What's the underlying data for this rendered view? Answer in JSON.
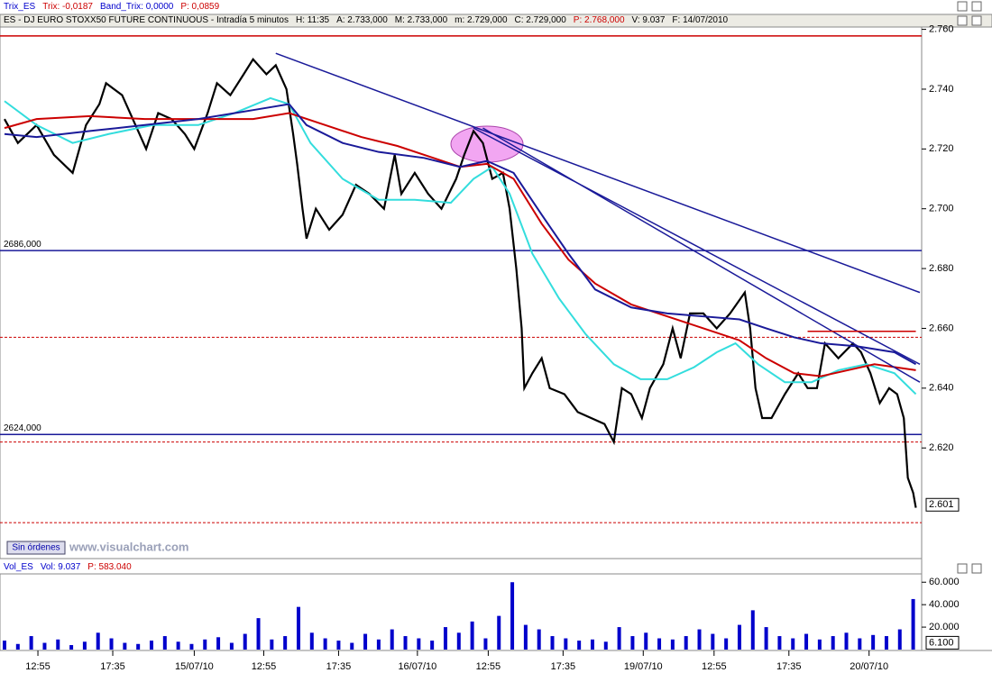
{
  "header": {
    "top": [
      "Trix_ES",
      "Trix: -0,0187",
      "Band_Trix: 0,0000",
      "P: 0,0859"
    ],
    "title": [
      "ES - DJ EURO STOXX50 FUTURE CONTINUOUS - Intradía 5 minutos",
      "H: 11:35",
      "A: 2.733,000",
      "M: 2.733,000",
      "m: 2.729,000",
      "C: 2.729,000",
      "P: 2.768,000",
      "V: 9.037",
      "F: 14/07/2010"
    ],
    "volume": [
      "Vol_ES",
      "Vol: 9.037",
      "P: 583.040"
    ],
    "button": "Sin órdenes",
    "watermark": "www.visualchart.com"
  },
  "chart_data": [
    {
      "type": "line",
      "xlim": [
        0,
        685
      ],
      "ylim": [
        2.583,
        2.765
      ],
      "yticks": [
        {
          "value": 2.62,
          "label": "2.620"
        },
        {
          "value": 2.64,
          "label": "2.640"
        },
        {
          "value": 2.66,
          "label": "2.660"
        },
        {
          "value": 2.68,
          "label": "2.680"
        },
        {
          "value": 2.7,
          "label": "2.700"
        },
        {
          "value": 2.72,
          "label": "2.720"
        },
        {
          "value": 2.74,
          "label": "2.740"
        },
        {
          "value": 2.76,
          "label": "2.760"
        }
      ],
      "series": [
        {
          "color": "#000000",
          "x": [
            0,
            10,
            24,
            37,
            51,
            61,
            71,
            76,
            88,
            98,
            106,
            115,
            125,
            135,
            142,
            152,
            159,
            169,
            179,
            186,
            196,
            203,
            211,
            216,
            219,
            223,
            226,
            233,
            243,
            253,
            263,
            273,
            284,
            292,
            297,
            307,
            317,
            327,
            338,
            344,
            351,
            358,
            365,
            373,
            378,
            383,
            387,
            389,
            395,
            402,
            408,
            419,
            429,
            439,
            449,
            456,
            462,
            469,
            477,
            483,
            493,
            500,
            506,
            513,
            523,
            533,
            543,
            554,
            558,
            562,
            567,
            574,
            584,
            594,
            601,
            608,
            614,
            624,
            635,
            641,
            648,
            655,
            662,
            668,
            673,
            676,
            680,
            682
          ],
          "values": [
            2.73,
            2.722,
            2.728,
            2.718,
            2.712,
            2.728,
            2.735,
            2.742,
            2.738,
            2.728,
            2.72,
            2.732,
            2.73,
            2.725,
            2.72,
            2.732,
            2.742,
            2.738,
            2.745,
            2.75,
            2.745,
            2.748,
            2.74,
            2.725,
            2.715,
            2.7,
            2.69,
            2.7,
            2.693,
            2.698,
            2.708,
            2.705,
            2.7,
            2.718,
            2.705,
            2.712,
            2.705,
            2.7,
            2.71,
            2.718,
            2.726,
            2.722,
            2.71,
            2.712,
            2.7,
            2.68,
            2.66,
            2.64,
            2.645,
            2.65,
            2.64,
            2.638,
            2.632,
            2.63,
            2.628,
            2.622,
            2.64,
            2.638,
            2.63,
            2.64,
            2.648,
            2.66,
            2.65,
            2.665,
            2.665,
            2.66,
            2.665,
            2.672,
            2.66,
            2.64,
            2.63,
            2.63,
            2.638,
            2.645,
            2.64,
            2.64,
            2.655,
            2.65,
            2.655,
            2.652,
            2.645,
            2.635,
            2.64,
            2.638,
            2.63,
            2.61,
            2.605,
            2.6
          ]
        },
        {
          "color": "#33dddd",
          "x": [
            0,
            24,
            51,
            78,
            111,
            145,
            172,
            199,
            213,
            229,
            253,
            280,
            307,
            334,
            351,
            365,
            378,
            395,
            415,
            435,
            456,
            476,
            496,
            516,
            533,
            547,
            564,
            584,
            604,
            624,
            645,
            666,
            682
          ],
          "values": [
            2.736,
            2.728,
            2.722,
            2.725,
            2.728,
            2.728,
            2.732,
            2.737,
            2.735,
            2.722,
            2.71,
            2.703,
            2.703,
            2.702,
            2.71,
            2.714,
            2.705,
            2.685,
            2.67,
            2.658,
            2.648,
            2.643,
            2.643,
            2.647,
            2.652,
            2.655,
            2.648,
            2.642,
            2.642,
            2.646,
            2.648,
            2.645,
            2.638
          ]
        },
        {
          "color": "#cc0000",
          "x": [
            0,
            24,
            64,
            105,
            145,
            186,
            213,
            240,
            267,
            294,
            321,
            341,
            361,
            381,
            402,
            422,
            442,
            469,
            496,
            523,
            550,
            570,
            591,
            611,
            631,
            651,
            682
          ],
          "values": [
            2.727,
            2.73,
            2.731,
            2.73,
            2.73,
            2.73,
            2.732,
            2.728,
            2.724,
            2.721,
            2.717,
            2.714,
            2.715,
            2.71,
            2.695,
            2.683,
            2.675,
            2.668,
            2.664,
            2.66,
            2.656,
            2.65,
            2.645,
            2.644,
            2.646,
            2.648,
            2.646
          ]
        },
        {
          "color": "#1a1a99",
          "x": [
            0,
            24,
            64,
            105,
            145,
            186,
            213,
            226,
            253,
            280,
            314,
            341,
            361,
            381,
            402,
            422,
            442,
            469,
            496,
            523,
            550,
            570,
            591,
            611,
            638,
            666,
            682
          ],
          "values": [
            2.725,
            2.724,
            2.726,
            2.728,
            2.73,
            2.733,
            2.735,
            2.728,
            2.722,
            2.719,
            2.717,
            2.714,
            2.716,
            2.712,
            2.698,
            2.685,
            2.673,
            2.667,
            2.665,
            2.664,
            2.663,
            2.66,
            2.657,
            2.655,
            2.654,
            2.652,
            2.648
          ]
        }
      ],
      "trendlines": [
        {
          "color": "#1a1a99",
          "x": [
            203,
            685
          ],
          "values": [
            2.752,
            2.672
          ]
        },
        {
          "color": "#1a1a99",
          "x": [
            351,
            685
          ],
          "values": [
            2.727,
            2.648
          ]
        },
        {
          "color": "#1a1a99",
          "x": [
            358,
            685
          ],
          "values": [
            2.727,
            2.642
          ]
        },
        {
          "color": "#cc0000",
          "x": [
            601,
            682
          ],
          "values": [
            2.659,
            2.659
          ]
        }
      ],
      "hlines": [
        {
          "value": 2.7578,
          "color": "#cc0000",
          "style": "solid"
        },
        {
          "value": 2.686,
          "color": "#1a1a99",
          "style": "solid",
          "label": "2686,000"
        },
        {
          "value": 2.657,
          "color": "#cc0000",
          "style": "dashed"
        },
        {
          "value": 2.6245,
          "color": "#1a1a99",
          "style": "solid",
          "label": "2624,000"
        },
        {
          "value": 2.622,
          "color": "#cc0000",
          "style": "dashed"
        },
        {
          "value": 2.595,
          "color": "#cc0000",
          "style": "dashed"
        }
      ],
      "last": {
        "value": 2.601,
        "label": "2.601"
      }
    },
    {
      "type": "bar",
      "xlim": [
        0,
        685
      ],
      "ylim": [
        0,
        65000
      ],
      "color": "#0000cc",
      "yticks": [
        {
          "value": 20000,
          "label": "20.000"
        },
        {
          "value": 40000,
          "label": "40.000"
        },
        {
          "value": 60000,
          "label": "60.000"
        }
      ],
      "xticks": [
        {
          "value": 25,
          "label": "12:55"
        },
        {
          "value": 81,
          "label": "17:35"
        },
        {
          "value": 142,
          "label": "15/07/10"
        },
        {
          "value": 194,
          "label": "12:55"
        },
        {
          "value": 250,
          "label": "17:35"
        },
        {
          "value": 309,
          "label": "16/07/10"
        },
        {
          "value": 362,
          "label": "12:55"
        },
        {
          "value": 418,
          "label": "17:35"
        },
        {
          "value": 478,
          "label": "19/07/10"
        },
        {
          "value": 531,
          "label": "12:55"
        },
        {
          "value": 587,
          "label": "17:35"
        },
        {
          "value": 647,
          "label": "20/07/10"
        }
      ],
      "x": [
        0,
        10,
        20,
        30,
        40,
        50,
        60,
        70,
        80,
        90,
        100,
        110,
        120,
        130,
        140,
        150,
        160,
        170,
        180,
        190,
        200,
        210,
        220,
        230,
        240,
        250,
        260,
        270,
        280,
        290,
        300,
        310,
        320,
        330,
        340,
        350,
        360,
        370,
        380,
        390,
        400,
        410,
        420,
        430,
        440,
        450,
        460,
        470,
        480,
        490,
        500,
        510,
        520,
        530,
        540,
        550,
        560,
        570,
        580,
        590,
        600,
        610,
        620,
        630,
        640,
        650,
        660,
        670,
        680
      ],
      "values": [
        8000,
        5000,
        12000,
        6000,
        9000,
        4000,
        7000,
        15000,
        10000,
        6000,
        5000,
        8000,
        12000,
        7000,
        5000,
        9000,
        11000,
        6000,
        14000,
        28000,
        9000,
        12000,
        38000,
        15000,
        10000,
        8000,
        6000,
        14000,
        9000,
        18000,
        12000,
        10000,
        8000,
        20000,
        15000,
        25000,
        10000,
        30000,
        60000,
        22000,
        18000,
        12000,
        10000,
        8000,
        9000,
        7000,
        20000,
        12000,
        15000,
        10000,
        9000,
        12000,
        18000,
        14000,
        10000,
        22000,
        35000,
        20000,
        12000,
        10000,
        14000,
        9000,
        12000,
        15000,
        10000,
        13000,
        12000,
        18000,
        45000
      ],
      "last": {
        "value": 6100,
        "label": "6.100"
      }
    }
  ]
}
